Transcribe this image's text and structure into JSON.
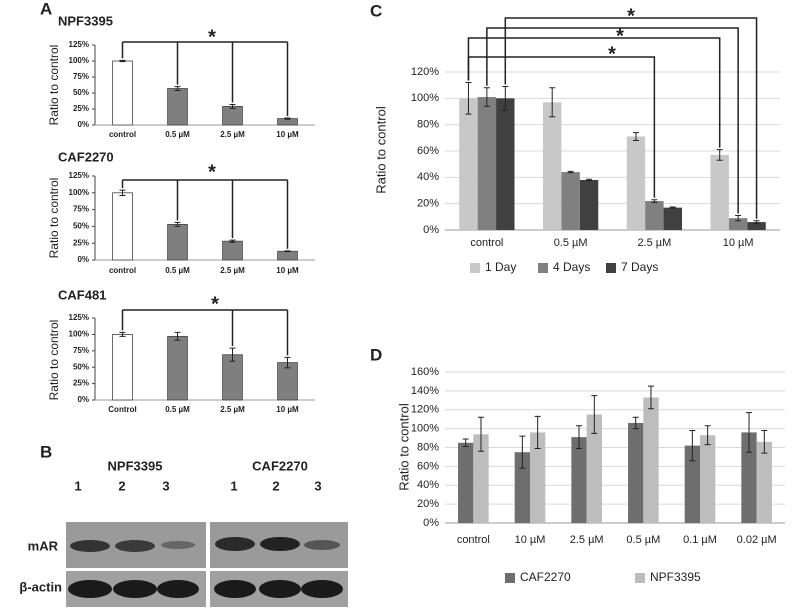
{
  "panel_labels": [
    "A",
    "B",
    "C",
    "D"
  ],
  "blot": {
    "groups": [
      "NPF3395",
      "CAF2270"
    ],
    "lanes": [
      "1",
      "2",
      "3",
      "1",
      "2",
      "3"
    ],
    "rows": [
      "mAR",
      "β-actin"
    ]
  },
  "chart_data": [
    {
      "type": "bar",
      "title": "NPF3395",
      "ylabel": "Ratio to control",
      "categories": [
        "control",
        "0.5 µM",
        "2.5 µM",
        "10 µM"
      ],
      "values": [
        100,
        57,
        29,
        10
      ],
      "errors": [
        1,
        3,
        3,
        1
      ],
      "bar_colors": [
        "#ffffff",
        "#7f7f7f",
        "#7f7f7f",
        "#7f7f7f"
      ],
      "ylim": [
        0,
        125
      ],
      "yticks": [
        {
          "value": 0,
          "label": "0%"
        },
        {
          "value": 25,
          "label": "25%"
        },
        {
          "value": 50,
          "label": "50%"
        },
        {
          "value": 75,
          "label": "75%"
        },
        {
          "value": 100,
          "label": "100%"
        },
        {
          "value": 125,
          "label": "125%"
        }
      ],
      "grid": false,
      "annotations": [
        "*"
      ]
    },
    {
      "type": "bar",
      "title": "CAF2270",
      "ylabel": "Ratio to control",
      "categories": [
        "control",
        "0.5 µM",
        "2.5 µM",
        "10 µM"
      ],
      "values": [
        100,
        53,
        28,
        13
      ],
      "errors": [
        4,
        3,
        1.5,
        0.5
      ],
      "bar_colors": [
        "#ffffff",
        "#7f7f7f",
        "#7f7f7f",
        "#7f7f7f"
      ],
      "ylim": [
        0,
        125
      ],
      "yticks": [
        {
          "value": 0,
          "label": "0%"
        },
        {
          "value": 25,
          "label": "25%"
        },
        {
          "value": 50,
          "label": "50%"
        },
        {
          "value": 75,
          "label": "75%"
        },
        {
          "value": 100,
          "label": "100%"
        },
        {
          "value": 125,
          "label": "125%"
        }
      ],
      "grid": false,
      "annotations": [
        "*"
      ]
    },
    {
      "type": "bar",
      "title": "CAF481",
      "ylabel": "Ratio to control",
      "categories": [
        "Control",
        "0.5 µM",
        "2.5 µM",
        "10 µM"
      ],
      "values": [
        100,
        97,
        69,
        57
      ],
      "errors": [
        3,
        6,
        10,
        8
      ],
      "bar_colors": [
        "#ffffff",
        "#7f7f7f",
        "#7f7f7f",
        "#7f7f7f"
      ],
      "ylim": [
        0,
        125
      ],
      "yticks": [
        {
          "value": 0,
          "label": "0%"
        },
        {
          "value": 25,
          "label": "25%"
        },
        {
          "value": 50,
          "label": "50%"
        },
        {
          "value": 75,
          "label": "75%"
        },
        {
          "value": 100,
          "label": "100%"
        },
        {
          "value": 125,
          "label": "125%"
        }
      ],
      "grid": false,
      "annotations": [
        "*"
      ]
    },
    {
      "type": "bar",
      "ylabel": "Ratio to control",
      "categories": [
        "control",
        "0.5 µM",
        "2.5 µM",
        "10 µM"
      ],
      "series": [
        {
          "name": "1 Day",
          "color": "#c8c8c8",
          "values": [
            100,
            97,
            71,
            57
          ],
          "errors": [
            12,
            11,
            3,
            4
          ]
        },
        {
          "name": "4 Days",
          "color": "#808080",
          "values": [
            101,
            44,
            22,
            9
          ],
          "errors": [
            7,
            0.5,
            1,
            2
          ]
        },
        {
          "name": "7 Days",
          "color": "#404040",
          "values": [
            100,
            38,
            17,
            6
          ],
          "errors": [
            9,
            0.5,
            0.5,
            1
          ]
        }
      ],
      "ylim": [
        0,
        120
      ],
      "yticks": [
        {
          "value": 0,
          "label": "0%"
        },
        {
          "value": 20,
          "label": "20%"
        },
        {
          "value": 40,
          "label": "40%"
        },
        {
          "value": 60,
          "label": "60%"
        },
        {
          "value": 80,
          "label": "80%"
        },
        {
          "value": 100,
          "label": "100%"
        },
        {
          "value": 120,
          "label": "120%"
        }
      ],
      "grid": true,
      "legend": "bottom",
      "annotations": [
        "*",
        "*",
        "*"
      ]
    },
    {
      "type": "bar",
      "ylabel": "Ratio to control",
      "categories": [
        "control",
        "10 µM",
        "2.5 µM",
        "0.5 µM",
        "0.1 µM",
        "0.02 µM"
      ],
      "series": [
        {
          "name": "CAF2270",
          "color": "#6e6e6e",
          "values": [
            85,
            75,
            91,
            106,
            82,
            96
          ],
          "errors": [
            4,
            17,
            12,
            6,
            16,
            21
          ]
        },
        {
          "name": "NPF3395",
          "color": "#bdbdbd",
          "values": [
            94,
            96,
            115,
            133,
            93,
            86
          ],
          "errors": [
            18,
            17,
            20,
            12,
            10,
            12
          ]
        }
      ],
      "ylim": [
        0,
        160
      ],
      "yticks": [
        {
          "value": 0,
          "label": "0%"
        },
        {
          "value": 20,
          "label": "20%"
        },
        {
          "value": 40,
          "label": "40%"
        },
        {
          "value": 60,
          "label": "60%"
        },
        {
          "value": 80,
          "label": "80%"
        },
        {
          "value": 100,
          "label": "100%"
        },
        {
          "value": 120,
          "label": "120%"
        },
        {
          "value": 140,
          "label": "140%"
        },
        {
          "value": 160,
          "label": "160%"
        }
      ],
      "grid": true,
      "legend": "bottom"
    }
  ]
}
